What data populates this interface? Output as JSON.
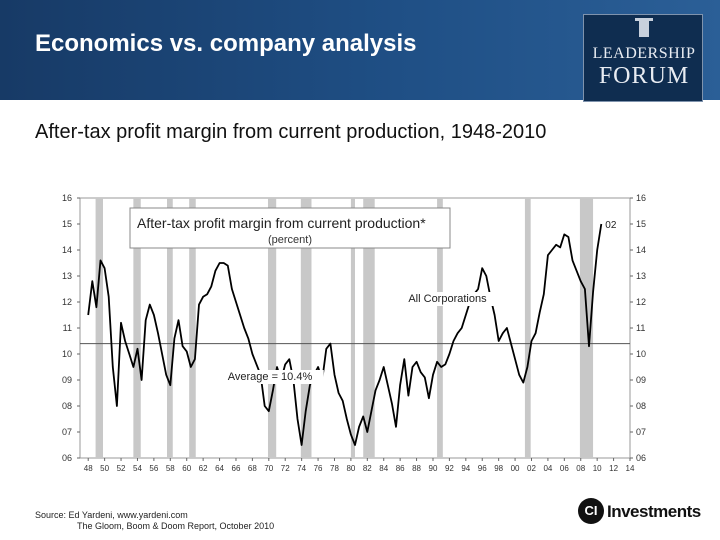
{
  "slide": {
    "title": "Economics vs. company analysis",
    "subtitle": "After-tax profit margin from current production, 1948-2010",
    "source_line1": "Source:  Ed Yardeni, www.yardeni.com",
    "source_line2": "The Gloom, Boom & Doom Report, October 2010"
  },
  "logo": {
    "line1": "LEADERSHIP",
    "line2": "FORUM"
  },
  "brand": {
    "ci_mark": "CI",
    "name": "Investments"
  },
  "colors": {
    "header_bg": "#1f4f85",
    "line": "#000000",
    "recession_band": "#c8c8c8",
    "average_line": "#555555"
  },
  "chart_data": {
    "type": "line",
    "title": "After-tax profit margin from current production*",
    "subtitle": "(percent)",
    "series": [
      {
        "name": "All Corporations",
        "x": [
          1948,
          1948.5,
          1949,
          1949.5,
          1950,
          1950.5,
          1951,
          1951.5,
          1952,
          1952.5,
          1953,
          1953.5,
          1954,
          1954.5,
          1955,
          1955.5,
          1956,
          1956.5,
          1957,
          1957.5,
          1958,
          1958.5,
          1959,
          1959.5,
          1960,
          1960.5,
          1961,
          1961.5,
          1962,
          1962.5,
          1963,
          1963.5,
          1964,
          1964.5,
          1965,
          1965.5,
          1966,
          1966.5,
          1967,
          1967.5,
          1968,
          1968.5,
          1969,
          1969.5,
          1970,
          1970.5,
          1971,
          1971.5,
          1972,
          1972.5,
          1973,
          1973.5,
          1974,
          1974.5,
          1975,
          1975.5,
          1976,
          1976.5,
          1977,
          1977.5,
          1978,
          1978.5,
          1979,
          1979.5,
          1980,
          1980.5,
          1981,
          1981.5,
          1982,
          1982.5,
          1983,
          1983.5,
          1984,
          1984.5,
          1985,
          1985.5,
          1986,
          1986.5,
          1987,
          1987.5,
          1988,
          1988.5,
          1989,
          1989.5,
          1990,
          1990.5,
          1991,
          1991.5,
          1992,
          1992.5,
          1993,
          1993.5,
          1994,
          1994.5,
          1995,
          1995.5,
          1996,
          1996.5,
          1997,
          1997.5,
          1998,
          1998.5,
          1999,
          1999.5,
          2000,
          2000.5,
          2001,
          2001.5,
          2002,
          2002.5,
          2003,
          2003.5,
          2004,
          2004.5,
          2005,
          2005.5,
          2006,
          2006.5,
          2007,
          2007.5,
          2008,
          2008.5,
          2009,
          2009.5,
          2010,
          2010.5
        ],
        "y": [
          11.5,
          12.8,
          11.8,
          13.6,
          13.3,
          12.2,
          9.5,
          8.0,
          11.2,
          10.5,
          10.0,
          9.5,
          10.2,
          9.0,
          11.3,
          11.9,
          11.5,
          10.8,
          10.0,
          9.2,
          8.8,
          10.6,
          11.3,
          10.3,
          10.1,
          9.5,
          9.8,
          11.9,
          12.2,
          12.3,
          12.6,
          13.2,
          13.5,
          13.5,
          13.4,
          12.5,
          12.0,
          11.5,
          11.0,
          10.6,
          10.0,
          9.6,
          9.2,
          8.0,
          7.8,
          8.6,
          9.5,
          9.0,
          9.6,
          9.8,
          9.0,
          7.5,
          6.5,
          7.8,
          8.8,
          9.2,
          9.5,
          9.0,
          10.2,
          10.4,
          9.2,
          8.5,
          8.2,
          7.5,
          6.9,
          6.5,
          7.2,
          7.6,
          7.0,
          7.8,
          8.6,
          9.0,
          9.5,
          8.8,
          8.1,
          7.2,
          8.8,
          9.8,
          8.4,
          9.5,
          9.7,
          9.3,
          9.1,
          8.3,
          9.2,
          9.7,
          9.5,
          9.6,
          10.0,
          10.5,
          10.8,
          11.0,
          11.5,
          12.0,
          12.3,
          12.5,
          13.3,
          13.0,
          12.2,
          11.5,
          10.5,
          10.8,
          11.0,
          10.4,
          9.8,
          9.2,
          8.9,
          9.5,
          10.5,
          10.8,
          11.6,
          12.3,
          13.8,
          14.0,
          14.2,
          14.1,
          14.6,
          14.5,
          13.6,
          13.2,
          12.8,
          12.5,
          10.3,
          12.4,
          14.0,
          15.0
        ],
        "last_label": "02"
      }
    ],
    "annotations": [
      {
        "text": "All Corporations",
        "x": 1987,
        "y": 12
      },
      {
        "text": "Average = 10.4%",
        "x": 1965,
        "y": 9
      }
    ],
    "average": 10.4,
    "xlim": [
      1947,
      2014
    ],
    "ylim": [
      6,
      16
    ],
    "xticks": [
      1948,
      1950,
      1952,
      1954,
      1956,
      1958,
      1960,
      1962,
      1964,
      1966,
      1968,
      1970,
      1972,
      1974,
      1976,
      1978,
      1980,
      1982,
      1984,
      1986,
      1988,
      1990,
      1992,
      1994,
      1996,
      1998,
      2000,
      2002,
      2004,
      2006,
      2008,
      2010,
      2012,
      2014
    ],
    "xtick_labels": [
      "48",
      "50",
      "52",
      "54",
      "56",
      "58",
      "60",
      "62",
      "64",
      "66",
      "68",
      "70",
      "72",
      "74",
      "76",
      "78",
      "80",
      "82",
      "84",
      "86",
      "88",
      "90",
      "92",
      "94",
      "96",
      "98",
      "00",
      "02",
      "04",
      "06",
      "08",
      "10",
      "12",
      "14"
    ],
    "yticks": [
      6,
      7,
      8,
      9,
      10,
      11,
      12,
      13,
      14,
      15,
      16
    ],
    "ytick_labels": [
      "06",
      "07",
      "08",
      "09",
      "10",
      "11",
      "12",
      "13",
      "14",
      "15",
      "16"
    ],
    "recessions": [
      [
        1948.9,
        1949.8
      ],
      [
        1953.5,
        1954.4
      ],
      [
        1957.6,
        1958.3
      ],
      [
        1960.3,
        1961.1
      ],
      [
        1969.9,
        1970.9
      ],
      [
        1973.9,
        1975.2
      ],
      [
        1980.0,
        1980.5
      ],
      [
        1981.5,
        1982.9
      ],
      [
        1990.5,
        1991.2
      ],
      [
        2001.2,
        2001.9
      ],
      [
        2007.9,
        2009.5
      ]
    ],
    "grid": false,
    "legend": "none"
  }
}
